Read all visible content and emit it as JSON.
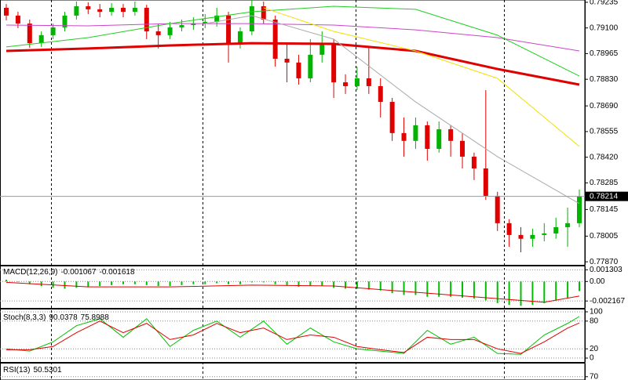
{
  "chart_data": [
    {
      "type": "candlestick",
      "up_color": "#00b400",
      "down_color": "#e00000",
      "grid": false,
      "ylim": [
        0.77854,
        0.79247
      ],
      "yticks": [
        0.79235,
        {
          "value": 0.791,
          "label": "0.79100"
        },
        0.78965,
        {
          "value": 0.7883,
          "label": "0.78830"
        },
        {
          "value": 0.7869,
          "label": "0.78690"
        },
        0.78555,
        {
          "value": 0.7842,
          "label": "0.78420"
        },
        0.78285,
        0.78145,
        0.78005,
        {
          "value": 0.7787,
          "label": "0.77870"
        }
      ],
      "candles": [
        [
          0.79206,
          0.79226,
          0.7914,
          0.79165
        ],
        [
          0.79165,
          0.79185,
          0.79099,
          0.79123
        ],
        [
          0.79123,
          0.79144,
          0.78996,
          0.7902
        ],
        [
          0.7902,
          0.79082,
          0.79,
          0.79062
        ],
        [
          0.79062,
          0.79123,
          0.79041,
          0.79103
        ],
        [
          0.79103,
          0.79185,
          0.79082,
          0.79165
        ],
        [
          0.79165,
          0.79239,
          0.79144,
          0.79214
        ],
        [
          0.79214,
          0.79235,
          0.79173,
          0.79198
        ],
        [
          0.79198,
          0.79226,
          0.79156,
          0.79185
        ],
        [
          0.79185,
          0.79231,
          0.79165,
          0.79206
        ],
        [
          0.79206,
          0.79226,
          0.79156,
          0.79185
        ],
        [
          0.79185,
          0.79239,
          0.79165,
          0.79206
        ],
        [
          0.79206,
          0.79222,
          0.79041,
          0.79082
        ],
        [
          0.79082,
          0.79123,
          0.78992,
          0.79062
        ],
        [
          0.79062,
          0.79132,
          0.79041,
          0.79103
        ],
        [
          0.79103,
          0.79144,
          0.79082,
          0.79115
        ],
        [
          0.79115,
          0.79156,
          0.7909,
          0.79123
        ],
        [
          0.79123,
          0.79173,
          0.79099,
          0.79132
        ],
        [
          0.79132,
          0.79206,
          0.79107,
          0.79165
        ],
        [
          0.79165,
          0.79185,
          0.78918,
          0.7902
        ],
        [
          0.7902,
          0.79103,
          0.78992,
          0.79082
        ],
        [
          0.79082,
          0.79247,
          0.79062,
          0.79214
        ],
        [
          0.79214,
          0.79239,
          0.79123,
          0.79144
        ],
        [
          0.79144,
          0.79165,
          0.78897,
          0.78938
        ],
        [
          0.78938,
          0.7902,
          0.78814,
          0.78918
        ],
        [
          0.78918,
          0.78959,
          0.78802,
          0.78835
        ],
        [
          0.78835,
          0.79041,
          0.78814,
          0.78959
        ],
        [
          0.78959,
          0.79082,
          0.78918,
          0.7902
        ],
        [
          0.7902,
          0.79041,
          0.78732,
          0.78814
        ],
        [
          0.78814,
          0.78856,
          0.78753,
          0.78794
        ],
        [
          0.78794,
          0.78897,
          0.78773,
          0.78835
        ],
        [
          0.78835,
          0.79,
          0.78753,
          0.78794
        ],
        [
          0.78794,
          0.78835,
          0.78629,
          0.78711
        ],
        [
          0.78711,
          0.78732,
          0.78506,
          0.78547
        ],
        [
          0.78547,
          0.78629,
          0.78423,
          0.78506
        ],
        [
          0.78506,
          0.78629,
          0.78464,
          0.78588
        ],
        [
          0.78588,
          0.78608,
          0.78402,
          0.78464
        ],
        [
          0.78464,
          0.78608,
          0.78444,
          0.78567
        ],
        [
          0.78567,
          0.78588,
          0.78423,
          0.78506
        ],
        [
          0.78506,
          0.78547,
          0.78361,
          0.78423
        ],
        [
          0.78423,
          0.78444,
          0.783,
          0.78361
        ],
        [
          0.78361,
          0.78773,
          0.78196,
          0.78217
        ],
        [
          0.78217,
          0.78238,
          0.78032,
          0.78073
        ],
        [
          0.78073,
          0.78094,
          0.77949,
          0.78011
        ],
        [
          0.78011,
          0.78052,
          0.7792,
          0.77991
        ],
        [
          0.77991,
          0.78044,
          0.77949,
          0.78011
        ],
        [
          0.78011,
          0.78073,
          0.77978,
          0.78019
        ],
        [
          0.78019,
          0.78102,
          0.77991,
          0.78052
        ],
        [
          0.78052,
          0.78155,
          0.77949,
          0.78073
        ],
        [
          0.78073,
          0.7825,
          0.78052,
          0.78214
        ]
      ],
      "series": [
        {
          "color": "#e00000",
          "width": 3,
          "x": [
            0,
            7,
            14,
            21,
            28,
            35,
            42,
            49
          ],
          "values": [
            0.78979,
            0.78992,
            0.79008,
            0.7902,
            0.79016,
            0.78979,
            0.78884,
            0.78802
          ]
        },
        {
          "color": "#cc44cc",
          "width": 1,
          "x": [
            0,
            7,
            14,
            21,
            28,
            35,
            42,
            49
          ],
          "values": [
            0.79115,
            0.79111,
            0.79123,
            0.79123,
            0.79115,
            0.7909,
            0.79049,
            0.78979
          ]
        },
        {
          "color": "#22cc22",
          "width": 1,
          "x": [
            0,
            7,
            14,
            21,
            28,
            35,
            42,
            49
          ],
          "values": [
            0.79,
            0.79049,
            0.79123,
            0.79185,
            0.79214,
            0.79198,
            0.79062,
            0.78847
          ]
        },
        {
          "color": "#f0e000",
          "width": 1,
          "x": [
            22,
            28,
            35,
            42,
            49
          ],
          "values": [
            0.79206,
            0.79082,
            0.78979,
            0.78835,
            0.78477
          ]
        },
        {
          "color": "#aaaaaa",
          "width": 1,
          "x": [
            17,
            21,
            28,
            35,
            42,
            49
          ],
          "values": [
            0.79123,
            0.79165,
            0.79041,
            0.78711,
            0.78423,
            0.78176
          ]
        }
      ]
    },
    {
      "type": "bar",
      "title": "MACD(12,26,9)",
      "color": "#00c000",
      "grid": true,
      "ylim": [
        -0.00285,
        0.00168
      ],
      "yticks": [
        0.001303,
        {
          "value": 0,
          "label": "0.00"
        },
        -0.002167
      ],
      "values": [
        0.0002,
        0,
        -0.0003,
        -0.0005,
        -0.0007,
        -0.0008,
        -0.0007,
        -0.0006,
        -0.0005,
        -0.0004,
        -0.0003,
        -0.0003,
        -0.0004,
        -0.0005,
        -0.0005,
        -0.0004,
        -0.0003,
        -0.0003,
        -0.0002,
        -0.0003,
        -0.0003,
        -0.0001,
        -0.0001,
        -0.0003,
        -0.0004,
        -0.0006,
        -0.0005,
        -0.0005,
        -0.0007,
        -0.0008,
        -0.0008,
        -0.0009,
        -0.001,
        -0.0013,
        -0.0015,
        -0.0015,
        -0.0017,
        -0.0017,
        -0.0017,
        -0.0018,
        -0.0019,
        -0.0021,
        -0.0024,
        -0.0026,
        -0.0027,
        -0.0026,
        -0.0024,
        -0.0021,
        -0.0018,
        -0.001067
      ],
      "series": [
        {
          "color": "#e00000",
          "width": 1,
          "x": [
            0,
            7,
            14,
            21,
            28,
            35,
            42,
            46,
            49
          ],
          "values": [
            -0.0001,
            -0.0006,
            -0.0006,
            -0.0004,
            -0.0005,
            -0.0012,
            -0.0019,
            -0.0023,
            -0.001618
          ]
        }
      ]
    },
    {
      "type": "line",
      "title": "Stoch(8,3,3)",
      "grid": true,
      "ylim": [
        0,
        100
      ],
      "yticks": [
        100,
        80,
        20,
        0
      ],
      "x": [
        0,
        2,
        4,
        6,
        8,
        10,
        12,
        14,
        16,
        18,
        20,
        22,
        24,
        26,
        28,
        30,
        32,
        34,
        36,
        38,
        40,
        42,
        44,
        46,
        48,
        49
      ],
      "series": [
        {
          "color": "#00c000",
          "width": 1,
          "values": [
            20,
            15,
            35,
            70,
            85,
            45,
            85,
            25,
            60,
            80,
            45,
            80,
            30,
            65,
            35,
            20,
            15,
            10,
            60,
            30,
            45,
            10,
            8,
            50,
            75,
            90.0378
          ]
        },
        {
          "color": "#e00000",
          "width": 1,
          "values": [
            18,
            18,
            25,
            55,
            80,
            55,
            75,
            40,
            50,
            75,
            55,
            65,
            40,
            50,
            45,
            25,
            18,
            12,
            45,
            40,
            40,
            20,
            10,
            35,
            65,
            75.8988
          ]
        }
      ]
    },
    {
      "type": "line",
      "title": "RSI(13)",
      "value": 50.5301,
      "grid": true,
      "ylim": [
        62,
        100
      ],
      "yticks": [
        70
      ],
      "series": []
    }
  ]
}
